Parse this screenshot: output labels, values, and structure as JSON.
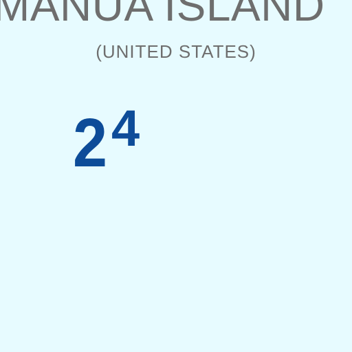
{
  "chart": {
    "island_name": "MANUA ISLAND",
    "country": "(UNITED STATES)",
    "sounding": {
      "whole": "2",
      "fraction": "4"
    }
  },
  "colors": {
    "sea": "#E7FBFF",
    "label_gray": "#6E6E6E",
    "sounding_blue": "#0D4C99"
  }
}
